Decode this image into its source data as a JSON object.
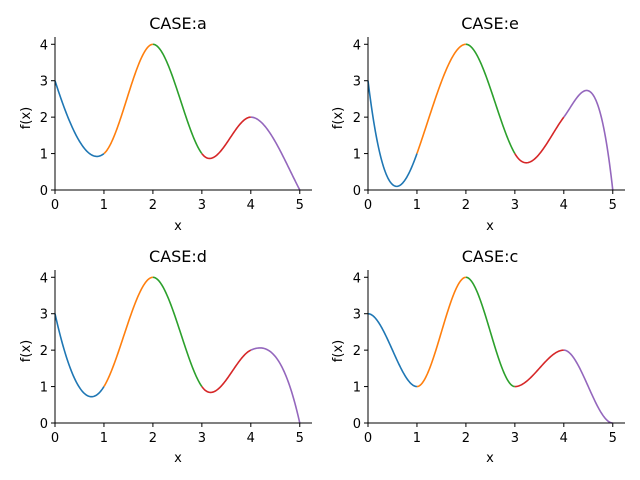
{
  "figure": {
    "background": "#ffffff"
  },
  "chart_data": [
    {
      "type": "line",
      "title": "CASE:a",
      "xlabel": "x",
      "ylabel": "f(x)",
      "xlim": [
        0,
        5.25
      ],
      "ylim": [
        0,
        4.2
      ],
      "xticks": [
        0,
        1,
        2,
        3,
        4,
        5
      ],
      "yticks": [
        0,
        1,
        2,
        3,
        4
      ],
      "grid": false,
      "knots": [
        [
          0,
          3.0
        ],
        [
          1,
          1.0
        ],
        [
          2,
          4.0
        ],
        [
          3,
          1.0
        ],
        [
          4,
          2.0
        ],
        [
          5,
          0.0
        ]
      ],
      "slopes": [
        -4.2,
        1.1,
        0.0,
        -1.8,
        0.0,
        -2.6
      ],
      "series": [
        {
          "x_range": [
            0,
            1
          ],
          "color": "#1f77b4"
        },
        {
          "x_range": [
            1,
            2
          ],
          "color": "#ff7f0e"
        },
        {
          "x_range": [
            2,
            3
          ],
          "color": "#2ca02c"
        },
        {
          "x_range": [
            3,
            4
          ],
          "color": "#d62728"
        },
        {
          "x_range": [
            4,
            5
          ],
          "color": "#9467bd"
        }
      ]
    },
    {
      "type": "line",
      "title": "CASE:e",
      "xlabel": "x",
      "ylabel": "f(x)",
      "xlim": [
        0,
        5.25
      ],
      "ylim": [
        0,
        4.2
      ],
      "xticks": [
        0,
        1,
        2,
        3,
        4,
        5
      ],
      "yticks": [
        0,
        1,
        2,
        3,
        4
      ],
      "grid": false,
      "knots": [
        [
          0,
          3.0
        ],
        [
          1,
          1.0
        ],
        [
          2,
          4.0
        ],
        [
          3,
          1.0
        ],
        [
          4,
          2.0
        ],
        [
          5,
          0.0
        ]
      ],
      "slopes": [
        -11.0,
        3.8,
        0.0,
        -2.3,
        1.8,
        -12.0
      ],
      "series": [
        {
          "x_range": [
            0,
            1
          ],
          "color": "#1f77b4"
        },
        {
          "x_range": [
            1,
            2
          ],
          "color": "#ff7f0e"
        },
        {
          "x_range": [
            2,
            3
          ],
          "color": "#2ca02c"
        },
        {
          "x_range": [
            3,
            4
          ],
          "color": "#d62728"
        },
        {
          "x_range": [
            4,
            5
          ],
          "color": "#9467bd"
        }
      ]
    },
    {
      "type": "line",
      "title": "CASE:d",
      "xlabel": "x",
      "ylabel": "f(x)",
      "xlim": [
        0,
        5.25
      ],
      "ylim": [
        0,
        4.2
      ],
      "xticks": [
        0,
        1,
        2,
        3,
        4,
        5
      ],
      "yticks": [
        0,
        1,
        2,
        3,
        4
      ],
      "grid": false,
      "knots": [
        [
          0,
          3.0
        ],
        [
          1,
          1.0
        ],
        [
          2,
          4.0
        ],
        [
          3,
          1.0
        ],
        [
          4,
          2.0
        ],
        [
          5,
          0.0
        ]
      ],
      "slopes": [
        -6.0,
        2.2,
        0.0,
        -1.9,
        0.6,
        -6.0
      ],
      "series": [
        {
          "x_range": [
            0,
            1
          ],
          "color": "#1f77b4"
        },
        {
          "x_range": [
            1,
            2
          ],
          "color": "#ff7f0e"
        },
        {
          "x_range": [
            2,
            3
          ],
          "color": "#2ca02c"
        },
        {
          "x_range": [
            3,
            4
          ],
          "color": "#d62728"
        },
        {
          "x_range": [
            4,
            5
          ],
          "color": "#9467bd"
        }
      ]
    },
    {
      "type": "line",
      "title": "CASE:c",
      "xlabel": "x",
      "ylabel": "f(x)",
      "xlim": [
        0,
        5.25
      ],
      "ylim": [
        0,
        4.2
      ],
      "xticks": [
        0,
        1,
        2,
        3,
        4,
        5
      ],
      "yticks": [
        0,
        1,
        2,
        3,
        4
      ],
      "grid": false,
      "knots": [
        [
          0,
          3.0
        ],
        [
          1,
          1.0
        ],
        [
          2,
          4.0
        ],
        [
          3,
          1.0
        ],
        [
          4,
          2.0
        ],
        [
          5,
          0.0
        ]
      ],
      "slopes": [
        0.0,
        0.0,
        0.0,
        0.0,
        0.0,
        0.0
      ],
      "series": [
        {
          "x_range": [
            0,
            1
          ],
          "color": "#1f77b4"
        },
        {
          "x_range": [
            1,
            2
          ],
          "color": "#ff7f0e"
        },
        {
          "x_range": [
            2,
            3
          ],
          "color": "#2ca02c"
        },
        {
          "x_range": [
            3,
            4
          ],
          "color": "#d62728"
        },
        {
          "x_range": [
            4,
            5
          ],
          "color": "#9467bd"
        }
      ]
    }
  ]
}
